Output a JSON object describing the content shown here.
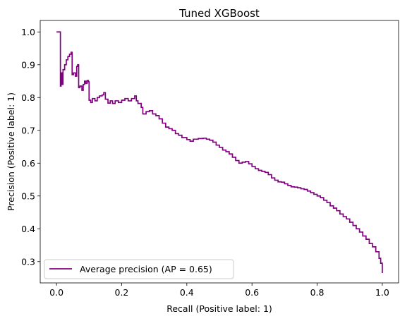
{
  "chart_data": {
    "type": "line",
    "title": "Tuned XGBoost",
    "xlabel": "Recall (Positive label: 1)",
    "ylabel": "Precision (Positive label: 1)",
    "xlim": [
      -0.05,
      1.05
    ],
    "ylim": [
      0.235,
      1.035
    ],
    "xticks": [
      0.0,
      0.2,
      0.4,
      0.6,
      0.8,
      1.0
    ],
    "xtick_labels": [
      "0.0",
      "0.2",
      "0.4",
      "0.6",
      "0.8",
      "1.0"
    ],
    "yticks": [
      0.3,
      0.4,
      0.5,
      0.6,
      0.7,
      0.8,
      0.9,
      1.0
    ],
    "ytick_labels": [
      "0.3",
      "0.4",
      "0.5",
      "0.6",
      "0.7",
      "0.8",
      "0.9",
      "1.0"
    ],
    "grid": false,
    "legend_position": "lower-left",
    "series": [
      {
        "name": "Average precision (AP = 0.65)",
        "color": "#800080",
        "points": [
          [
            0.0,
            1.0
          ],
          [
            0.012,
            1.0
          ],
          [
            0.012,
            0.835
          ],
          [
            0.014,
            0.875
          ],
          [
            0.017,
            0.84
          ],
          [
            0.02,
            0.885
          ],
          [
            0.025,
            0.9
          ],
          [
            0.03,
            0.915
          ],
          [
            0.035,
            0.925
          ],
          [
            0.04,
            0.932
          ],
          [
            0.045,
            0.938
          ],
          [
            0.048,
            0.87
          ],
          [
            0.052,
            0.875
          ],
          [
            0.058,
            0.865
          ],
          [
            0.062,
            0.895
          ],
          [
            0.065,
            0.9
          ],
          [
            0.068,
            0.83
          ],
          [
            0.072,
            0.835
          ],
          [
            0.078,
            0.822
          ],
          [
            0.082,
            0.84
          ],
          [
            0.086,
            0.85
          ],
          [
            0.09,
            0.843
          ],
          [
            0.094,
            0.852
          ],
          [
            0.098,
            0.848
          ],
          [
            0.1,
            0.792
          ],
          [
            0.105,
            0.785
          ],
          [
            0.11,
            0.797
          ],
          [
            0.118,
            0.79
          ],
          [
            0.125,
            0.8
          ],
          [
            0.132,
            0.805
          ],
          [
            0.14,
            0.808
          ],
          [
            0.145,
            0.815
          ],
          [
            0.15,
            0.795
          ],
          [
            0.158,
            0.783
          ],
          [
            0.165,
            0.79
          ],
          [
            0.172,
            0.782
          ],
          [
            0.18,
            0.79
          ],
          [
            0.19,
            0.785
          ],
          [
            0.2,
            0.792
          ],
          [
            0.21,
            0.797
          ],
          [
            0.22,
            0.79
          ],
          [
            0.23,
            0.797
          ],
          [
            0.24,
            0.805
          ],
          [
            0.245,
            0.79
          ],
          [
            0.25,
            0.782
          ],
          [
            0.26,
            0.77
          ],
          [
            0.265,
            0.75
          ],
          [
            0.275,
            0.757
          ],
          [
            0.285,
            0.76
          ],
          [
            0.295,
            0.75
          ],
          [
            0.305,
            0.745
          ],
          [
            0.315,
            0.735
          ],
          [
            0.325,
            0.722
          ],
          [
            0.335,
            0.71
          ],
          [
            0.345,
            0.705
          ],
          [
            0.355,
            0.7
          ],
          [
            0.365,
            0.69
          ],
          [
            0.375,
            0.685
          ],
          [
            0.385,
            0.678
          ],
          [
            0.4,
            0.672
          ],
          [
            0.41,
            0.667
          ],
          [
            0.42,
            0.673
          ],
          [
            0.435,
            0.675
          ],
          [
            0.45,
            0.676
          ],
          [
            0.46,
            0.673
          ],
          [
            0.47,
            0.67
          ],
          [
            0.48,
            0.664
          ],
          [
            0.49,
            0.655
          ],
          [
            0.5,
            0.648
          ],
          [
            0.51,
            0.64
          ],
          [
            0.52,
            0.635
          ],
          [
            0.53,
            0.628
          ],
          [
            0.54,
            0.618
          ],
          [
            0.55,
            0.608
          ],
          [
            0.56,
            0.6
          ],
          [
            0.57,
            0.603
          ],
          [
            0.58,
            0.605
          ],
          [
            0.59,
            0.598
          ],
          [
            0.6,
            0.59
          ],
          [
            0.61,
            0.583
          ],
          [
            0.62,
            0.578
          ],
          [
            0.63,
            0.575
          ],
          [
            0.64,
            0.572
          ],
          [
            0.65,
            0.565
          ],
          [
            0.66,
            0.555
          ],
          [
            0.67,
            0.548
          ],
          [
            0.68,
            0.543
          ],
          [
            0.69,
            0.542
          ],
          [
            0.7,
            0.537
          ],
          [
            0.71,
            0.532
          ],
          [
            0.72,
            0.528
          ],
          [
            0.73,
            0.527
          ],
          [
            0.74,
            0.525
          ],
          [
            0.75,
            0.522
          ],
          [
            0.76,
            0.52
          ],
          [
            0.77,
            0.515
          ],
          [
            0.78,
            0.51
          ],
          [
            0.79,
            0.505
          ],
          [
            0.8,
            0.5
          ],
          [
            0.81,
            0.495
          ],
          [
            0.82,
            0.487
          ],
          [
            0.83,
            0.48
          ],
          [
            0.84,
            0.47
          ],
          [
            0.85,
            0.463
          ],
          [
            0.86,
            0.455
          ],
          [
            0.87,
            0.445
          ],
          [
            0.88,
            0.437
          ],
          [
            0.89,
            0.43
          ],
          [
            0.9,
            0.42
          ],
          [
            0.91,
            0.41
          ],
          [
            0.92,
            0.4
          ],
          [
            0.93,
            0.39
          ],
          [
            0.94,
            0.378
          ],
          [
            0.95,
            0.368
          ],
          [
            0.96,
            0.355
          ],
          [
            0.97,
            0.345
          ],
          [
            0.98,
            0.33
          ],
          [
            0.99,
            0.31
          ],
          [
            0.995,
            0.295
          ],
          [
            1.0,
            0.265
          ]
        ]
      }
    ]
  }
}
